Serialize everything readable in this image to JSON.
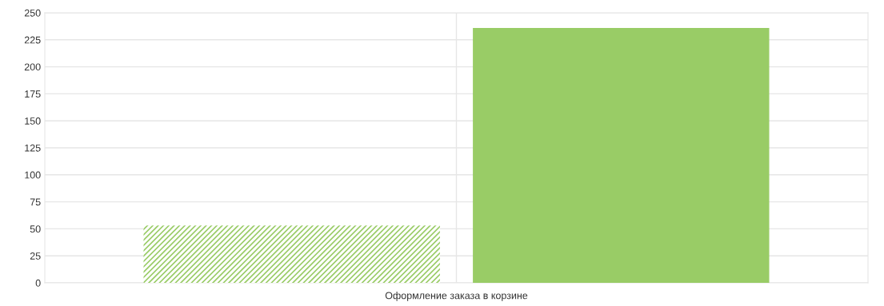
{
  "chart_data": {
    "type": "bar",
    "categories": [
      "Оформление заказа в корзине"
    ],
    "series": [
      {
        "color": "#99cc66",
        "values": [
          53
        ]
      },
      {
        "color": "#99cc66",
        "values": [
          236
        ]
      }
    ],
    "ylim": [
      0,
      250
    ],
    "yticks": [
      0,
      25,
      50,
      75,
      100,
      125,
      150,
      175,
      200,
      225,
      250
    ],
    "grid": true,
    "legend": false
  }
}
